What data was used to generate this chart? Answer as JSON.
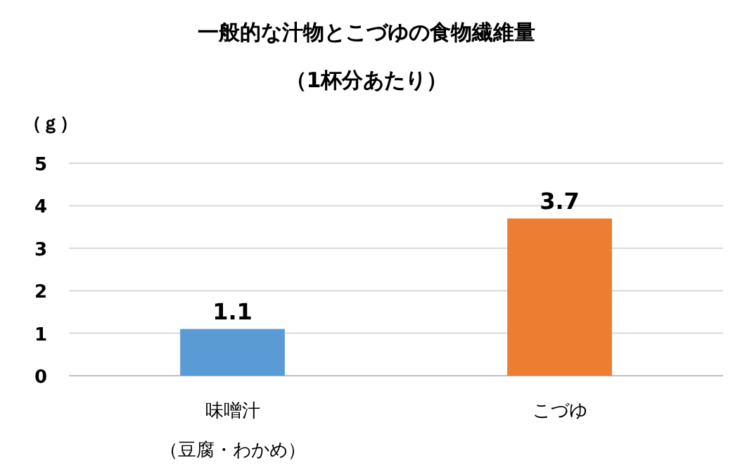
{
  "chart_data": {
    "type": "bar",
    "title": "一般的な汁物とこづゆの食物繊維量",
    "subtitle": "（1杯分あたり）",
    "ylabel": "（ｇ）",
    "categories": [
      "味噌汁（豆腐・わかめ）",
      "こづゆ"
    ],
    "values": [
      1.1,
      3.7
    ],
    "colors": [
      "#5b9bd5",
      "#ed7d31"
    ],
    "ylim": [
      0,
      5
    ],
    "yticks": [
      0,
      1,
      2,
      3,
      4,
      5
    ],
    "grid": "y",
    "data_labels": true
  }
}
